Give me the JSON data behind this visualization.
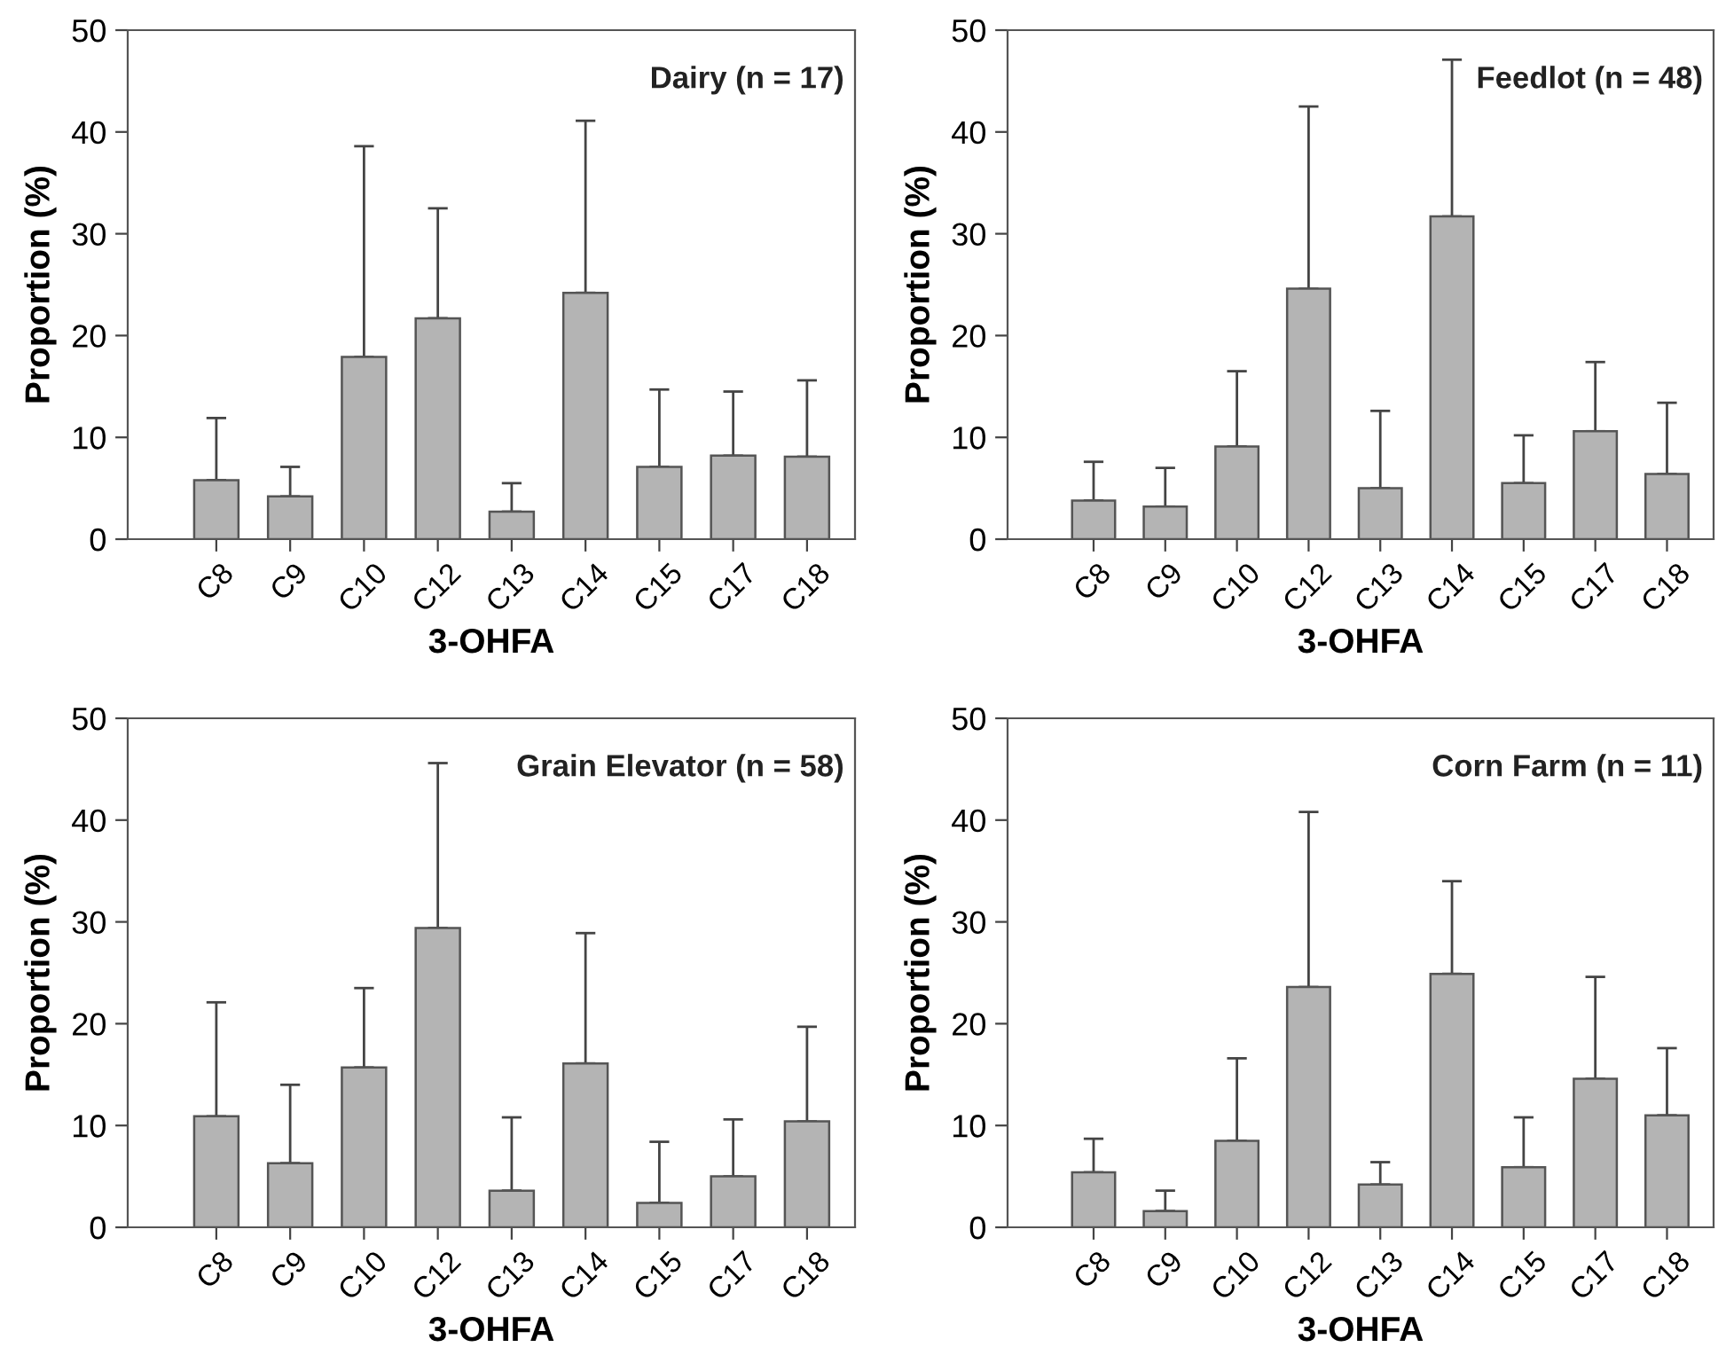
{
  "chart_data": [
    {
      "type": "bar",
      "annotations": [
        "Dairy (n = 17)"
      ],
      "xlabel": "3-OHFA",
      "ylabel": "Proportion (%)",
      "categories": [
        "C8",
        "C9",
        "C10",
        "C12",
        "C13",
        "C14",
        "C15",
        "C17",
        "C18"
      ],
      "color": "#b4b4b4",
      "ylim": [
        0,
        50
      ],
      "yticks": [
        0,
        10,
        20,
        30,
        40,
        50
      ],
      "values": [
        5.8,
        4.2,
        17.9,
        21.7,
        2.7,
        24.2,
        7.1,
        8.2,
        8.1
      ],
      "errors": [
        [
          5.8,
          11.9
        ],
        [
          4.2,
          7.1
        ],
        [
          17.9,
          38.6
        ],
        [
          21.7,
          32.5
        ],
        [
          2.7,
          5.5
        ],
        [
          24.2,
          41.1
        ],
        [
          7.1,
          14.7
        ],
        [
          8.2,
          14.5
        ],
        [
          8.1,
          15.6
        ]
      ]
    },
    {
      "type": "bar",
      "annotations": [
        "Feedlot (n = 48)"
      ],
      "xlabel": "3-OHFA",
      "ylabel": "Proportion (%)",
      "categories": [
        "C8",
        "C9",
        "C10",
        "C12",
        "C13",
        "C14",
        "C15",
        "C17",
        "C18"
      ],
      "color": "#b4b4b4",
      "ylim": [
        0,
        50
      ],
      "yticks": [
        0,
        10,
        20,
        30,
        40,
        50
      ],
      "values": [
        3.8,
        3.2,
        9.1,
        24.6,
        5.0,
        31.7,
        5.5,
        10.6,
        6.4
      ],
      "errors": [
        [
          3.8,
          7.6
        ],
        [
          3.2,
          7.0
        ],
        [
          9.1,
          16.5
        ],
        [
          24.6,
          42.5
        ],
        [
          5.0,
          12.6
        ],
        [
          31.7,
          47.1
        ],
        [
          5.5,
          10.2
        ],
        [
          10.6,
          17.4
        ],
        [
          6.4,
          13.4
        ]
      ]
    },
    {
      "type": "bar",
      "annotations": [
        "Grain Elevator (n = 58)"
      ],
      "xlabel": "3-OHFA",
      "ylabel": "Proportion (%)",
      "categories": [
        "C8",
        "C9",
        "C10",
        "C12",
        "C13",
        "C14",
        "C15",
        "C17",
        "C18"
      ],
      "color": "#b4b4b4",
      "ylim": [
        0,
        50
      ],
      "yticks": [
        0,
        10,
        20,
        30,
        40,
        50
      ],
      "values": [
        10.9,
        6.3,
        15.7,
        29.4,
        3.6,
        16.1,
        2.4,
        5.0,
        10.4
      ],
      "errors": [
        [
          10.9,
          22.1
        ],
        [
          6.3,
          14.0
        ],
        [
          15.7,
          23.5
        ],
        [
          29.4,
          45.6
        ],
        [
          3.6,
          10.8
        ],
        [
          16.1,
          28.9
        ],
        [
          2.4,
          8.4
        ],
        [
          5.0,
          10.6
        ],
        [
          10.4,
          19.7
        ]
      ]
    },
    {
      "type": "bar",
      "annotations": [
        "Corn Farm (n = 11)"
      ],
      "xlabel": "3-OHFA",
      "ylabel": "Proportion (%)",
      "categories": [
        "C8",
        "C9",
        "C10",
        "C12",
        "C13",
        "C14",
        "C15",
        "C17",
        "C18"
      ],
      "color": "#b4b4b4",
      "ylim": [
        0,
        50
      ],
      "yticks": [
        0,
        10,
        20,
        30,
        40,
        50
      ],
      "values": [
        5.4,
        1.6,
        8.5,
        23.6,
        4.2,
        24.9,
        5.9,
        14.6,
        11.0
      ],
      "errors": [
        [
          5.4,
          8.7
        ],
        [
          1.6,
          3.6
        ],
        [
          8.5,
          16.6
        ],
        [
          23.6,
          40.8
        ],
        [
          4.2,
          6.4
        ],
        [
          24.9,
          34.0
        ],
        [
          5.9,
          10.8
        ],
        [
          14.6,
          24.6
        ],
        [
          11.0,
          17.6
        ]
      ]
    }
  ]
}
